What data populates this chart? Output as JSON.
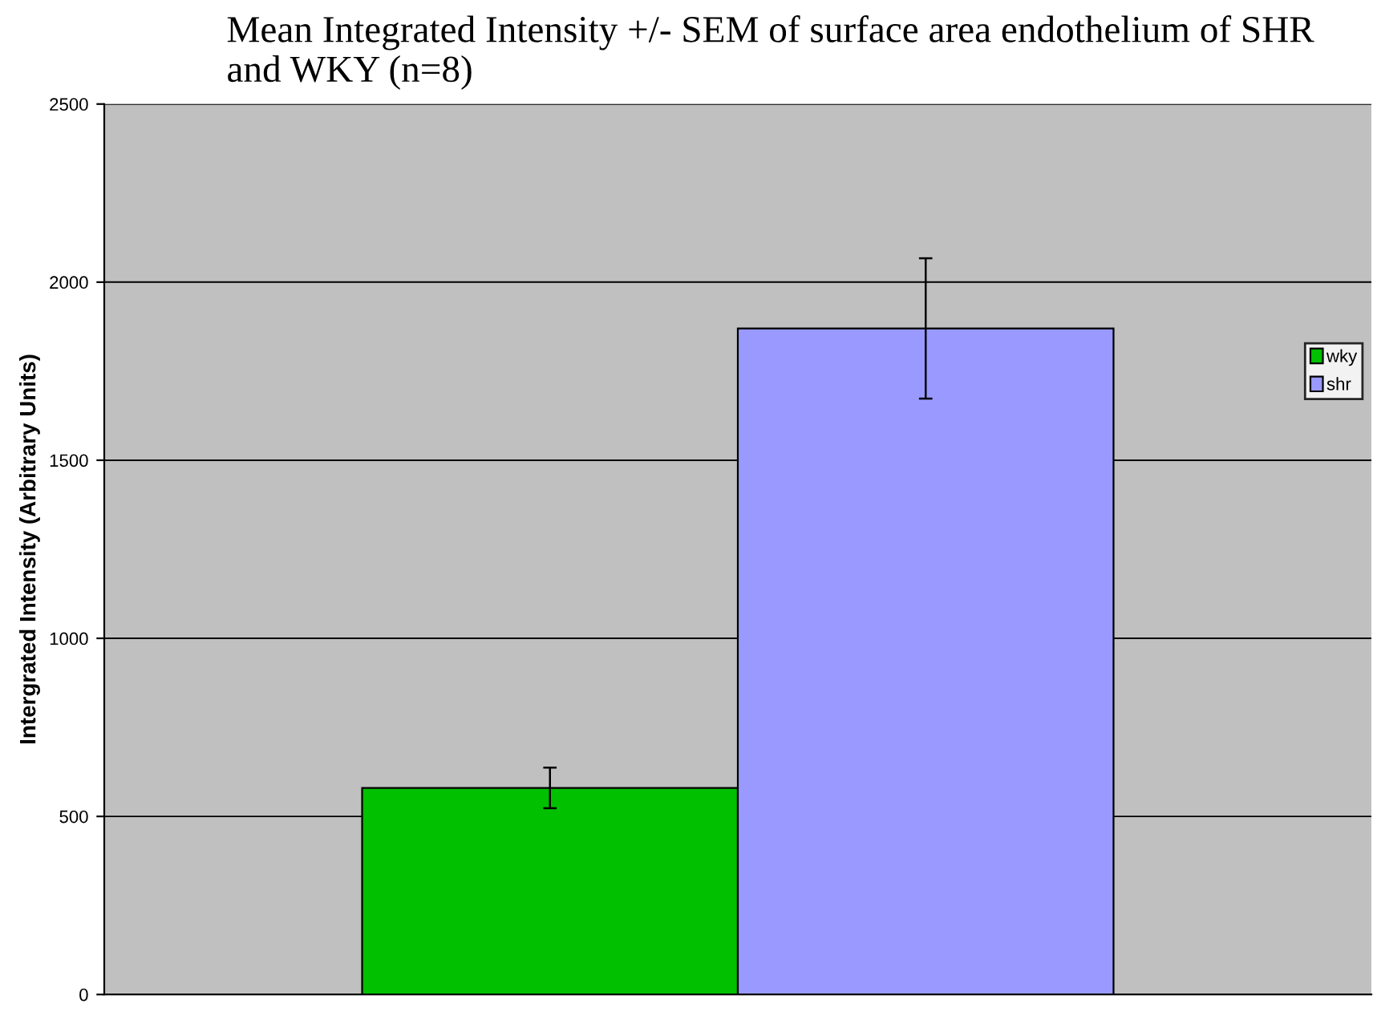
{
  "chart_data": {
    "type": "bar",
    "title": "Mean Integrated Intensity +/- SEM of surface area endothelium of SHR and WKY (n=8)",
    "ylabel": "Intergrated Intensity (Arbitrary Units)",
    "categories": [
      null
    ],
    "series": [
      {
        "name": "wky",
        "color": "#00c000",
        "values": [
          580
        ],
        "errors": [
          57
        ]
      },
      {
        "name": "shr",
        "color": "#9999ff",
        "values": [
          1870
        ],
        "errors": [
          197
        ]
      }
    ],
    "ylim": [
      0,
      2500
    ],
    "yticks": [
      0,
      500,
      1000,
      1500,
      2000,
      2500
    ],
    "grid": "y",
    "legend": "right"
  }
}
